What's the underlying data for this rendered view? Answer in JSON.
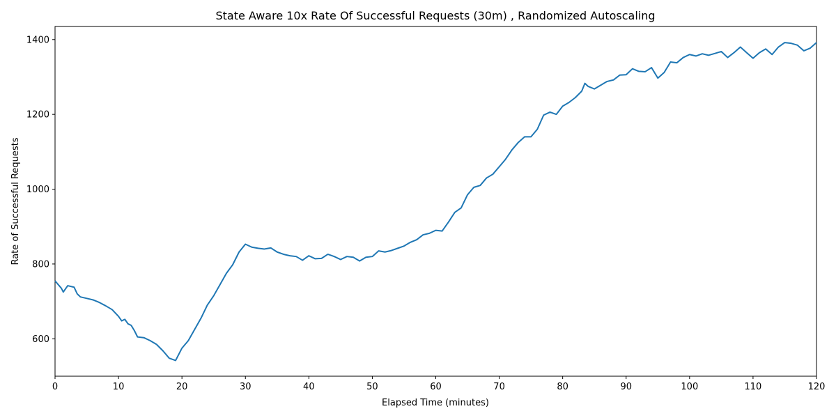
{
  "chart_data": {
    "type": "line",
    "title": "State Aware 10x Rate Of Successful Requests (30m) , Randomized Autoscaling",
    "xlabel": "Elapsed Time (minutes)",
    "ylabel": "Rate of Successful Requests",
    "xlim": [
      0,
      120
    ],
    "ylim": [
      500,
      1435
    ],
    "xticks": [
      0,
      10,
      20,
      30,
      40,
      50,
      60,
      70,
      80,
      90,
      100,
      110,
      120
    ],
    "yticks": [
      600,
      800,
      1000,
      1200,
      1400
    ],
    "grid": false,
    "line_color": "#1f77b4",
    "series": [
      {
        "x": [
          0,
          1,
          1.3,
          2,
          3,
          3.5,
          4,
          5,
          6,
          7,
          8,
          9,
          10,
          10.5,
          11,
          11.5,
          12,
          12.5,
          13,
          14,
          15,
          16,
          17,
          18,
          19,
          20,
          21,
          22,
          23,
          24,
          25,
          26,
          27,
          28,
          29,
          30,
          31,
          32,
          33,
          34,
          35,
          36,
          37,
          38,
          39,
          40,
          41,
          42,
          43,
          44,
          45,
          46,
          47,
          48,
          49,
          50,
          51,
          52,
          53,
          54,
          55,
          56,
          57,
          58,
          59,
          60,
          61,
          62,
          63,
          64,
          65,
          66,
          67,
          68,
          69,
          70,
          71,
          72,
          73,
          74,
          75,
          76,
          77,
          78,
          79,
          80,
          81,
          82,
          83,
          83.5,
          84,
          85,
          86,
          87,
          88,
          89,
          90,
          91,
          92,
          93,
          94,
          95,
          96,
          97,
          98,
          99,
          100,
          101,
          102,
          103,
          104,
          105,
          106,
          107,
          108,
          109,
          110,
          111,
          112,
          113,
          114,
          115,
          116,
          117,
          118,
          119,
          120
        ],
        "y": [
          755,
          735,
          725,
          742,
          738,
          720,
          712,
          708,
          704,
          697,
          688,
          678,
          660,
          648,
          652,
          640,
          636,
          622,
          605,
          603,
          595,
          585,
          568,
          548,
          542,
          575,
          595,
          625,
          655,
          690,
          715,
          745,
          775,
          798,
          832,
          853,
          845,
          842,
          840,
          843,
          832,
          826,
          822,
          820,
          810,
          822,
          814,
          815,
          826,
          820,
          812,
          820,
          818,
          808,
          818,
          820,
          835,
          832,
          836,
          842,
          848,
          858,
          865,
          878,
          882,
          890,
          888,
          912,
          938,
          950,
          985,
          1005,
          1010,
          1030,
          1040,
          1060,
          1080,
          1105,
          1125,
          1140,
          1140,
          1160,
          1198,
          1206,
          1200,
          1222,
          1232,
          1245,
          1262,
          1283,
          1275,
          1268,
          1278,
          1288,
          1292,
          1305,
          1306,
          1322,
          1315,
          1314,
          1325,
          1297,
          1312,
          1340,
          1338,
          1352,
          1360,
          1356,
          1362,
          1358,
          1363,
          1368,
          1352,
          1365,
          1380,
          1365,
          1350,
          1365,
          1375,
          1360,
          1380,
          1392,
          1390,
          1385,
          1370,
          1377,
          1392
        ]
      }
    ]
  }
}
